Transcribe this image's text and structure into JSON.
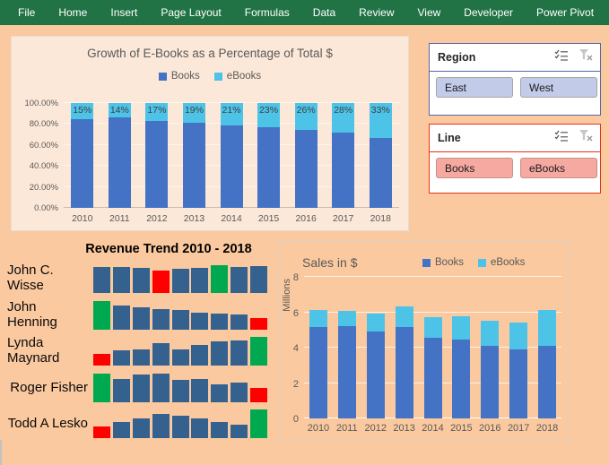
{
  "ribbon": {
    "tabs": [
      "File",
      "Home",
      "Insert",
      "Page Layout",
      "Formulas",
      "Data",
      "Review",
      "View",
      "Developer",
      "Power Pivot"
    ]
  },
  "colors": {
    "ribbon_green": "#217346",
    "page_bg": "#FBC99F",
    "panel_bg": "#FCE8D8",
    "books_blue": "#4472C4",
    "ebooks_cyan": "#4EC3E8",
    "spark_blue": "#35618F",
    "spark_green": "#00A94F",
    "spark_red": "#FE0000",
    "region_accent": "#5866A8",
    "region_btn": "#C2CBE8",
    "line_accent": "#E8321C",
    "line_btn": "#F5A9A1",
    "axis_text": "#595959"
  },
  "growth_chart": {
    "type": "bar",
    "subtype": "100%-stacked-column",
    "title": "Growth of E-Books as a Percentage of Total $",
    "legend": [
      "Books",
      "eBooks"
    ],
    "categories": [
      "2010",
      "2011",
      "2012",
      "2013",
      "2014",
      "2015",
      "2016",
      "2017",
      "2018"
    ],
    "series": [
      {
        "name": "Books",
        "values": [
          85,
          86,
          83,
          81,
          79,
          77,
          74,
          72,
          67
        ]
      },
      {
        "name": "eBooks",
        "values": [
          15,
          14,
          17,
          19,
          21,
          23,
          26,
          28,
          33
        ]
      }
    ],
    "data_labels": [
      "15%",
      "14%",
      "17%",
      "19%",
      "21%",
      "23%",
      "26%",
      "28%",
      "33%"
    ],
    "y_ticks": [
      "0.00%",
      "20.00%",
      "40.00%",
      "60.00%",
      "80.00%",
      "100.00%"
    ],
    "ylim": [
      0,
      100
    ]
  },
  "slicers": [
    {
      "title": "Region",
      "items": [
        "East",
        "West"
      ]
    },
    {
      "title": "Line",
      "items": [
        "Books",
        "eBooks"
      ]
    }
  ],
  "revenue_trend": {
    "title": "Revenue Trend 2010 - 2018",
    "years": "2010-2018",
    "rows": [
      {
        "name": "John C. Wisse",
        "values": [
          29,
          29,
          28,
          25,
          27,
          28,
          31,
          29,
          30
        ],
        "colors": [
          "b",
          "b",
          "b",
          "r",
          "b",
          "b",
          "g",
          "b",
          "b"
        ]
      },
      {
        "name": "John Henning",
        "values": [
          32,
          27,
          25,
          23,
          22,
          19,
          18,
          17,
          13
        ],
        "colors": [
          "g",
          "b",
          "b",
          "b",
          "b",
          "b",
          "b",
          "b",
          "r"
        ]
      },
      {
        "name": "Lynda Maynard",
        "values": [
          13,
          17,
          18,
          25,
          18,
          23,
          27,
          28,
          32
        ],
        "colors": [
          "r",
          "b",
          "b",
          "b",
          "b",
          "b",
          "b",
          "b",
          "g"
        ]
      },
      {
        "name": "Roger Fisher",
        "values": [
          32,
          26,
          31,
          32,
          25,
          26,
          20,
          22,
          16
        ],
        "colors": [
          "g",
          "b",
          "b",
          "b",
          "b",
          "b",
          "b",
          "b",
          "r"
        ]
      },
      {
        "name": "Todd A Lesko",
        "values": [
          13,
          18,
          22,
          27,
          25,
          22,
          18,
          15,
          32
        ],
        "colors": [
          "r",
          "b",
          "b",
          "b",
          "b",
          "b",
          "b",
          "b",
          "g"
        ]
      }
    ]
  },
  "sales_chart": {
    "type": "bar",
    "subtype": "stacked-column",
    "title": "Sales in $",
    "legend": [
      "Books",
      "eBooks"
    ],
    "y_axis_label": "Millions",
    "y_ticks": [
      0,
      2,
      4,
      6,
      8
    ],
    "ylim": [
      0,
      8
    ],
    "categories": [
      "2010",
      "2011",
      "2012",
      "2013",
      "2014",
      "2015",
      "2016",
      "2017",
      "2018"
    ],
    "series": [
      {
        "name": "Books",
        "values": [
          5.15,
          5.2,
          4.9,
          5.15,
          4.55,
          4.45,
          4.1,
          3.9,
          4.1
        ]
      },
      {
        "name": "eBooks",
        "values": [
          0.95,
          0.85,
          1.0,
          1.15,
          1.15,
          1.3,
          1.4,
          1.5,
          2.0
        ]
      }
    ]
  }
}
